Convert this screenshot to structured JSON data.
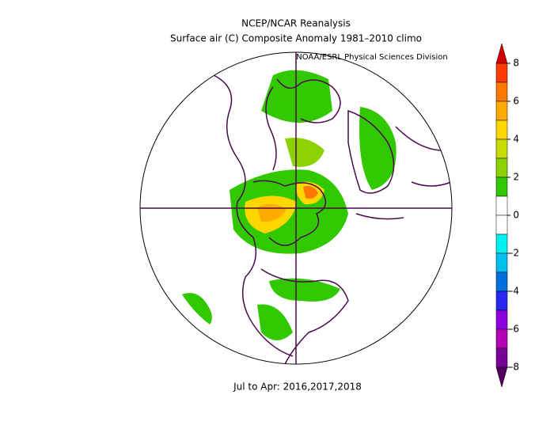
{
  "header": {
    "title": "NCEP/NCAR Reanalysis",
    "subtitle": "Surface air (C) Composite Anomaly 1981–2010 climo",
    "attribution": "NOAA/ESRL Physical Sciences Division"
  },
  "footer": "Jul to Apr: 2016,2017,2018",
  "colorbar": {
    "range": [
      -8,
      8
    ],
    "ticks": [
      8,
      6,
      4,
      2,
      0,
      -2,
      -4,
      -6,
      -8
    ],
    "over_color": "#d20000",
    "under_color": "#50005a",
    "colors": [
      "#ff3c00",
      "#ff7800",
      "#ffaa00",
      "#ffd700",
      "#c8dc00",
      "#8cd200",
      "#32c800",
      "#ffffff",
      "#ffffff",
      "#00f0f0",
      "#00bfef",
      "#0070dc",
      "#2828f0",
      "#8c00e0",
      "#b400b4",
      "#780096"
    ]
  }
}
